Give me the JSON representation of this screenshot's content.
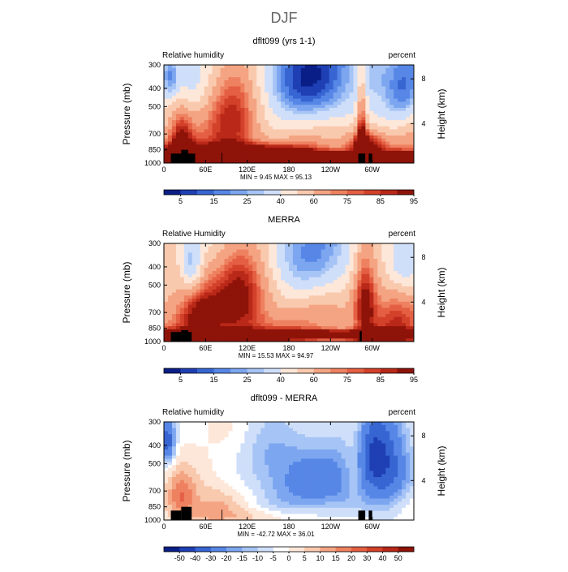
{
  "title": "DJF",
  "colors": {
    "full_scale": [
      "#0a1e87",
      "#1f3fb4",
      "#3765d2",
      "#5787e6",
      "#7da6f0",
      "#a6c4f5",
      "#cfdffa",
      "#fde7d9",
      "#f9c9ae",
      "#f4a482",
      "#ee8160",
      "#e45f43",
      "#d3412a",
      "#b92818",
      "#8e1309"
    ],
    "diff_scale": [
      "#0a1e87",
      "#1f3fb4",
      "#3765d2",
      "#5787e6",
      "#7da6f0",
      "#a6c4f5",
      "#cfdffa",
      "#ffffff",
      "#fde7d9",
      "#f9c9ae",
      "#f4a482",
      "#ee8160",
      "#e45f43",
      "#d3412a",
      "#b92818",
      "#8e1309"
    ],
    "terrain": "#000000"
  },
  "chart_data": [
    {
      "type": "heatmap",
      "title": "dflt099 (yrs 1-1)",
      "left_label": "Relative humidity",
      "right_label": "percent",
      "ylabel": "Pressure (mb)",
      "y2label": "Height (km)",
      "xticks": [
        "0",
        "60E",
        "120E",
        "180",
        "120W",
        "60W"
      ],
      "yticks": [
        "300",
        "400",
        "500",
        "700",
        "850",
        "1000"
      ],
      "y2ticks": [
        "8",
        "4"
      ],
      "stats": "MIN =    9.45   MAX =   95.13",
      "colorbar_labels": [
        "5",
        "15",
        "25",
        "40",
        "60",
        "75",
        "85",
        "95"
      ],
      "scale": "full",
      "lon_range": [
        0,
        360
      ],
      "pressure_range": [
        300,
        1000
      ],
      "terrain": [
        [
          10,
          25,
          890
        ],
        [
          25,
          35,
          850
        ],
        [
          35,
          45,
          890
        ],
        [
          83,
          84,
          880
        ],
        [
          280,
          290,
          890
        ],
        [
          295,
          300,
          890
        ]
      ],
      "features": [
        {
          "lon": 8,
          "p": 350,
          "value": 15,
          "slon": 10,
          "sp": 80
        },
        {
          "lon": 38,
          "p": 380,
          "value": 35,
          "slon": 15,
          "sp": 90
        },
        {
          "lon": 230,
          "p": 430,
          "value": 10,
          "slon": 55,
          "sp": 180
        },
        {
          "lon": 180,
          "p": 330,
          "value": 32,
          "slon": 40,
          "sp": 100
        },
        {
          "lon": 345,
          "p": 400,
          "value": 18,
          "slon": 22,
          "sp": 150
        },
        {
          "lon": 300,
          "p": 330,
          "value": 35,
          "slon": 15,
          "sp": 80
        },
        {
          "lon": 100,
          "p": 550,
          "value": 72,
          "slon": 25,
          "sp": 400
        },
        {
          "lon": 25,
          "p": 750,
          "value": 78,
          "slon": 12,
          "sp": 200
        },
        {
          "lon": 285,
          "p": 650,
          "value": 82,
          "slon": 5,
          "sp": 300
        },
        {
          "lon": 290,
          "p": 800,
          "value": 84,
          "slon": 18,
          "sp": 100
        },
        {
          "lon": 180,
          "p": 930,
          "value": 94,
          "slon": 400,
          "sp": 45
        },
        {
          "lon": 100,
          "p": 870,
          "value": 86,
          "slon": 80,
          "sp": 60
        }
      ]
    },
    {
      "type": "heatmap",
      "title": "MERRA",
      "left_label": "Relative Humidity",
      "right_label": "percent",
      "ylabel": "Pressure (mb)",
      "y2label": "Height (km)",
      "xticks": [
        "0",
        "60E",
        "120E",
        "180",
        "120W",
        "60W"
      ],
      "yticks": [
        "300",
        "400",
        "500",
        "700",
        "850",
        "1000"
      ],
      "y2ticks": [
        "8",
        "4"
      ],
      "stats": "MIN =   15.53   MAX =   94.97",
      "colorbar_labels": [
        "5",
        "15",
        "25",
        "40",
        "60",
        "75",
        "85",
        "95"
      ],
      "scale": "full",
      "lon_range": [
        0,
        360
      ],
      "pressure_range": [
        300,
        1000
      ],
      "terrain": [
        [
          10,
          25,
          890
        ],
        [
          25,
          35,
          870
        ],
        [
          35,
          40,
          890
        ],
        [
          282,
          285,
          880
        ]
      ],
      "features": [
        {
          "lon": 40,
          "p": 400,
          "value": 20,
          "slon": 10,
          "sp": 90
        },
        {
          "lon": 230,
          "p": 400,
          "value": 22,
          "slon": 50,
          "sp": 150
        },
        {
          "lon": 170,
          "p": 330,
          "value": 38,
          "slon": 35,
          "sp": 90
        },
        {
          "lon": 345,
          "p": 390,
          "value": 28,
          "slon": 15,
          "sp": 100
        },
        {
          "lon": 8,
          "p": 500,
          "value": 50,
          "slon": 20,
          "sp": 250
        },
        {
          "lon": 110,
          "p": 600,
          "value": 80,
          "slon": 30,
          "sp": 300
        },
        {
          "lon": 290,
          "p": 600,
          "value": 86,
          "slon": 12,
          "sp": 250
        },
        {
          "lon": 50,
          "p": 700,
          "value": 70,
          "slon": 20,
          "sp": 200
        },
        {
          "lon": 180,
          "p": 920,
          "value": 92,
          "slon": 400,
          "sp": 40
        },
        {
          "lon": 330,
          "p": 700,
          "value": 66,
          "slon": 20,
          "sp": 200
        }
      ]
    },
    {
      "type": "heatmap",
      "title": "dflt099 - MERRA",
      "left_label": "Relative humidity",
      "right_label": "percent",
      "ylabel": "Pressure (mb)",
      "y2label": "Height (km)",
      "xticks": [
        "0",
        "60E",
        "120E",
        "180",
        "120W",
        "60W"
      ],
      "yticks": [
        "300",
        "400",
        "500",
        "700",
        "850",
        "1000"
      ],
      "y2ticks": [
        "8",
        "4"
      ],
      "stats": "MIN =  -42.72   MAX =   36.01",
      "colorbar_labels": [
        "-50",
        "-40",
        "-30",
        "-20",
        "-15",
        "-10",
        "-5",
        "0",
        "5",
        "10",
        "15",
        "20",
        "30",
        "40",
        "50"
      ],
      "scale": "diff",
      "lon_range": [
        0,
        360
      ],
      "pressure_range": [
        300,
        1000
      ],
      "terrain": [
        [
          10,
          25,
          890
        ],
        [
          25,
          40,
          850
        ],
        [
          83,
          84,
          880
        ],
        [
          280,
          290,
          890
        ],
        [
          295,
          300,
          890
        ]
      ],
      "features": [
        {
          "lon": 5,
          "p": 380,
          "value": -35,
          "slon": 8,
          "sp": 80
        },
        {
          "lon": 230,
          "p": 620,
          "value": -25,
          "slon": 45,
          "sp": 200
        },
        {
          "lon": 150,
          "p": 460,
          "value": -12,
          "slon": 30,
          "sp": 150
        },
        {
          "lon": 320,
          "p": 500,
          "value": -32,
          "slon": 25,
          "sp": 250
        },
        {
          "lon": 300,
          "p": 450,
          "value": -18,
          "slon": 15,
          "sp": 120
        },
        {
          "lon": 25,
          "p": 760,
          "value": 20,
          "slon": 15,
          "sp": 150
        },
        {
          "lon": 275,
          "p": 500,
          "value": 8,
          "slon": 10,
          "sp": 200
        },
        {
          "lon": 70,
          "p": 850,
          "value": 10,
          "slon": 25,
          "sp": 150
        },
        {
          "lon": 120,
          "p": 950,
          "value": 6,
          "slon": 60,
          "sp": 60
        },
        {
          "lon": 175,
          "p": 750,
          "value": -6,
          "slon": 30,
          "sp": 150
        }
      ]
    }
  ]
}
